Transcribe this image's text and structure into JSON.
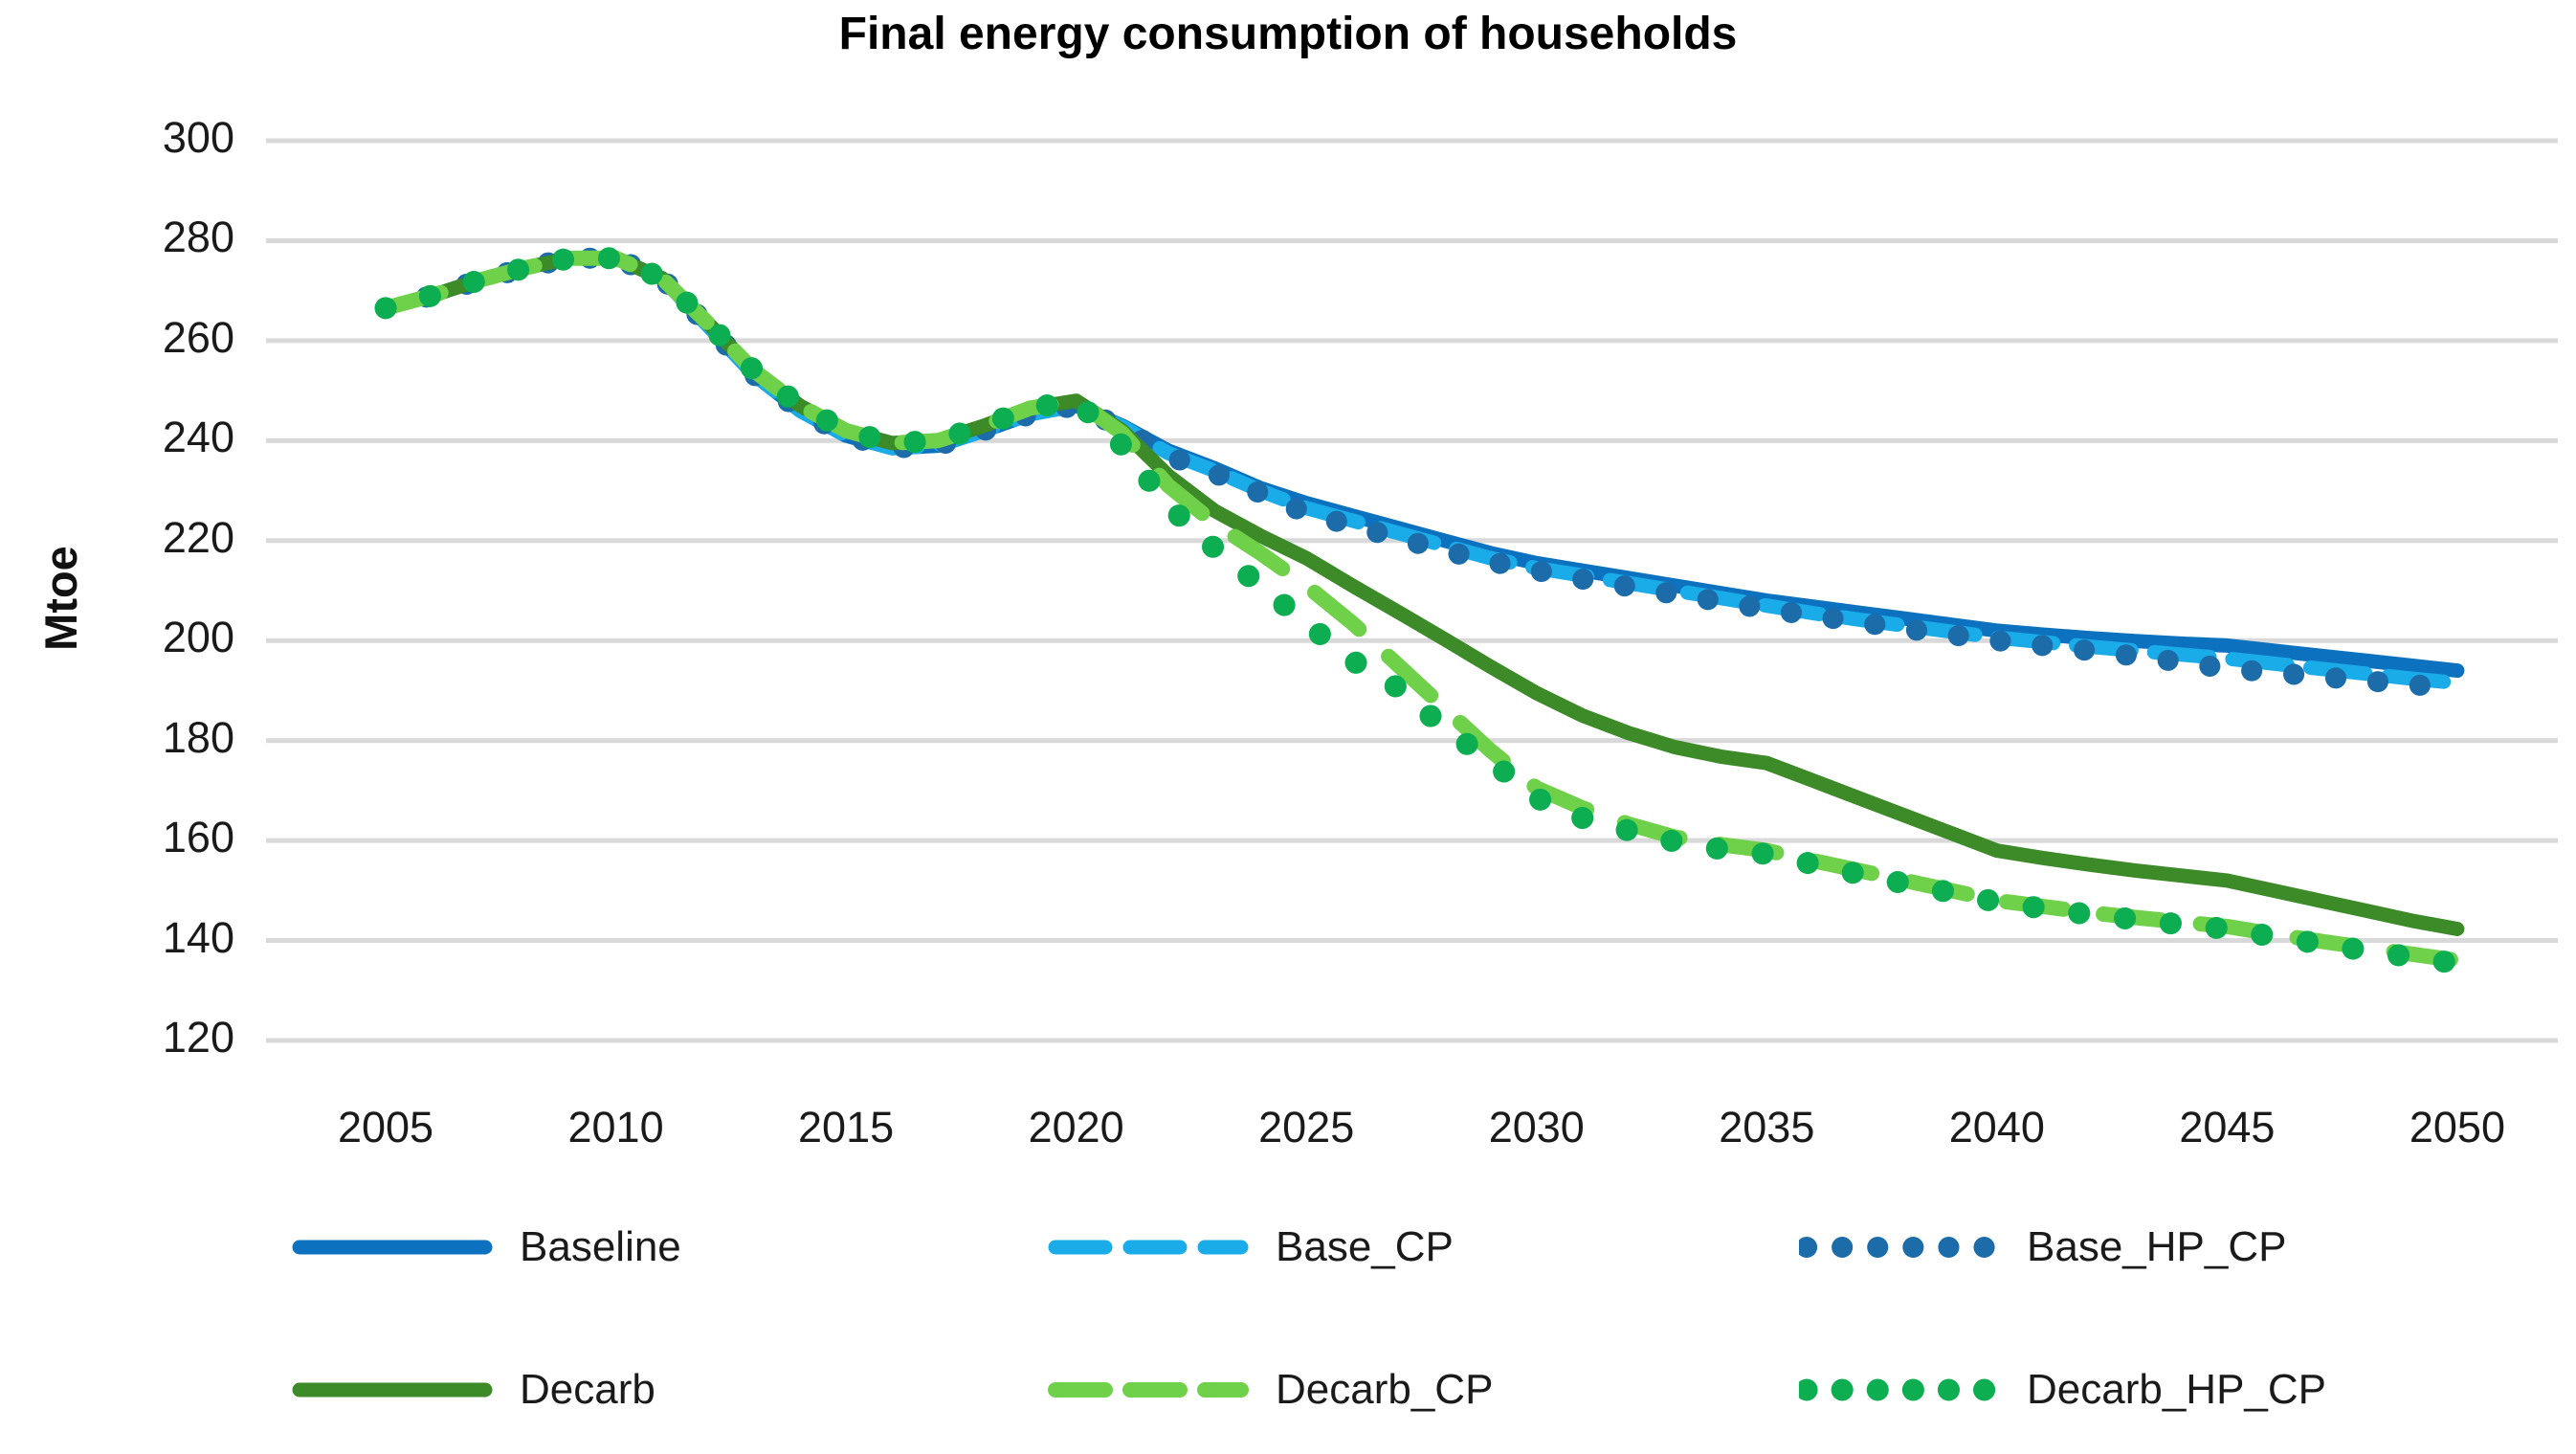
{
  "chart_data": {
    "type": "line",
    "title": "Final energy consumption of households",
    "xlabel": "",
    "ylabel": "Mtoe",
    "x_range": [
      2005,
      2050
    ],
    "y_range": [
      120,
      300
    ],
    "x_ticks": [
      2005,
      2010,
      2015,
      2020,
      2025,
      2030,
      2035,
      2040,
      2045,
      2050
    ],
    "y_ticks": [
      300,
      280,
      260,
      240,
      220,
      200,
      180,
      160,
      140,
      120
    ],
    "grid": "horizontal-only",
    "grid_color": "#D9D9D9",
    "legend_position": "bottom",
    "text_color": "#1A1A1A",
    "years": [
      2005,
      2006,
      2007,
      2008,
      2009,
      2010,
      2011,
      2012,
      2013,
      2014,
      2015,
      2016,
      2017,
      2018,
      2019,
      2020,
      2021,
      2022,
      2023,
      2024,
      2025,
      2026,
      2027,
      2028,
      2029,
      2030,
      2031,
      2032,
      2033,
      2034,
      2035,
      2036,
      2037,
      2038,
      2039,
      2040,
      2041,
      2042,
      2043,
      2044,
      2045,
      2046,
      2047,
      2048,
      2049,
      2050
    ],
    "series": [
      {
        "name": "Baseline",
        "color": "#0C72BF",
        "style": "solid",
        "values": [
          266.5,
          269,
          272,
          274.5,
          276.5,
          276.5,
          272.5,
          263,
          253.2,
          246,
          241,
          238.5,
          239,
          242,
          245.3,
          247,
          243,
          238,
          234.5,
          230.5,
          227.5,
          225,
          222.5,
          220,
          217.5,
          215.5,
          214,
          212.5,
          211,
          209.5,
          208,
          206.8,
          205.6,
          204.4,
          203.2,
          202,
          201.2,
          200.5,
          199.9,
          199.4,
          199,
          198,
          197,
          196,
          195,
          194
        ]
      },
      {
        "name": "Base_CP",
        "color": "#1AABE9",
        "style": "dashed",
        "values": [
          266.5,
          269,
          272,
          274.5,
          276.5,
          276.5,
          272.5,
          263,
          253.2,
          246,
          241,
          238.5,
          239,
          242,
          245.3,
          247,
          242.8,
          237.5,
          234,
          230,
          226.5,
          224,
          221.5,
          219,
          216.5,
          214.5,
          213,
          211.5,
          210,
          208.5,
          207,
          205.5,
          204.2,
          203,
          201.8,
          200.6,
          199.7,
          198.8,
          198,
          197.2,
          196.4,
          195.4,
          194.4,
          193.4,
          192.4,
          191.5
        ]
      },
      {
        "name": "Base_HP_CP",
        "color": "#1C6CA9",
        "style": "dotted",
        "values": [
          266.5,
          269,
          272,
          274.5,
          276.5,
          276.5,
          272.5,
          263,
          253.2,
          246,
          241,
          238.5,
          239,
          242,
          245.3,
          247,
          242.5,
          237,
          233.5,
          229.5,
          225.5,
          223,
          220.5,
          218,
          215.8,
          214,
          212.3,
          210.8,
          209.3,
          207.8,
          206.3,
          205,
          203.7,
          202.4,
          201.2,
          200,
          199,
          198,
          196.9,
          195.7,
          194.4,
          193.6,
          192.8,
          192,
          191.2,
          190.5
        ]
      },
      {
        "name": "Decarb",
        "color": "#3C8A28",
        "style": "solid",
        "values": [
          266.5,
          269,
          272,
          274.5,
          276.5,
          276.5,
          272.5,
          263.5,
          254,
          247,
          242,
          239.5,
          240,
          243,
          246.5,
          248,
          242,
          233,
          226,
          221,
          216.5,
          211,
          205.7,
          200.3,
          194.8,
          189.5,
          185,
          181.5,
          178.7,
          176.8,
          175.5,
          172,
          168.5,
          165,
          161.5,
          158,
          156.5,
          155.2,
          154,
          153,
          152,
          150,
          148,
          146,
          144,
          142.3
        ]
      },
      {
        "name": "Decarb_CP",
        "color": "#6FD14A",
        "style": "dashed",
        "values": [
          266.5,
          269,
          272,
          274.5,
          276.5,
          276.5,
          272.5,
          263.5,
          254,
          247,
          242,
          239.5,
          240,
          243,
          246.5,
          248,
          241.5,
          231,
          223.5,
          217.5,
          211,
          203.5,
          195,
          186.5,
          178,
          170.5,
          166.5,
          163.3,
          160.7,
          159.2,
          158,
          156,
          154,
          152,
          150,
          148,
          146.8,
          145.6,
          144.6,
          143.7,
          142.8,
          141.3,
          139.9,
          138.6,
          137.3,
          136
        ]
      },
      {
        "name": "Decarb_HP_CP",
        "color": "#0DAE52",
        "style": "dotted",
        "values": [
          266.5,
          269,
          272,
          274.5,
          276.5,
          276.5,
          272.5,
          263.5,
          254,
          247,
          242,
          239.5,
          240,
          243,
          246.5,
          248,
          239,
          227,
          218.5,
          211,
          203.5,
          196,
          190.5,
          182.5,
          176,
          168.5,
          164.5,
          162,
          159.8,
          158.3,
          157.3,
          155.3,
          153.3,
          151.4,
          149.6,
          147.7,
          146.4,
          145.2,
          144.2,
          143.2,
          142.3,
          140.8,
          139.4,
          138,
          136.7,
          135.4
        ]
      }
    ]
  }
}
